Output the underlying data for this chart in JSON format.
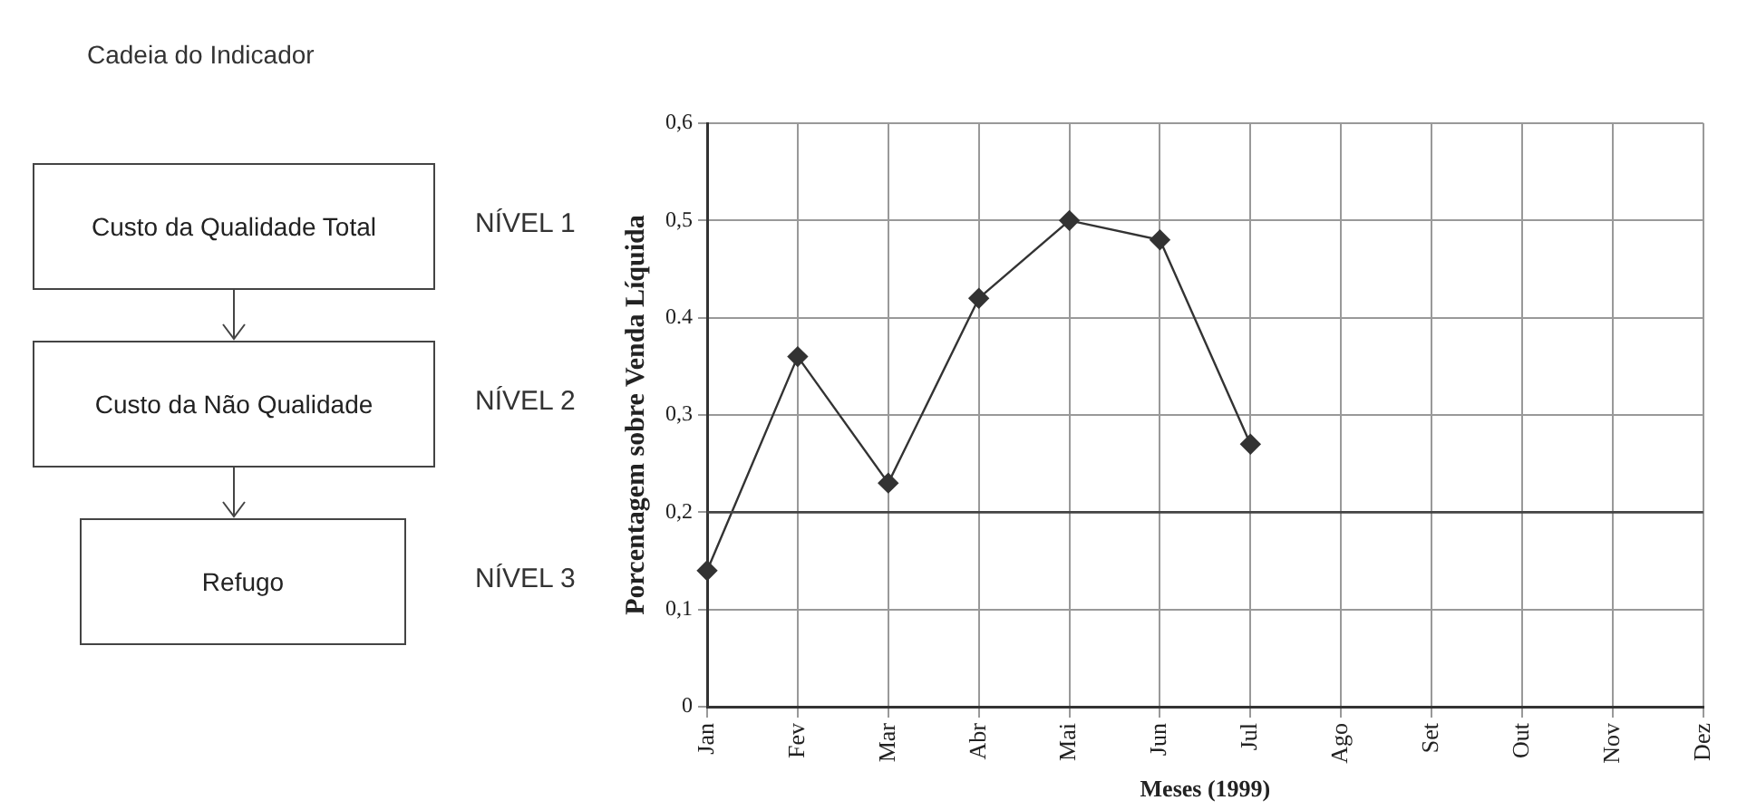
{
  "chart_data": [
    {
      "type": "other",
      "title": "Cadeia do Indicador",
      "annotations": [
        "Custo da Qualidade Total",
        "Custo da Não Qualidade",
        "Refugo",
        "NÍVEL 1",
        "NÍVEL 2",
        "NÍVEL 3"
      ]
    },
    {
      "type": "line",
      "xlabel": "Meses (1999)",
      "ylabel": "Porcentagem sobre Venda Líquida",
      "categories": [
        "Jan",
        "Fev",
        "Mar",
        "Abr",
        "Mai",
        "Jun",
        "Jul",
        "Ago",
        "Set",
        "Out",
        "Nov",
        "Dez"
      ],
      "series": [
        {
          "color": "#333333",
          "values": [
            0.14,
            0.36,
            0.23,
            0.42,
            0.5,
            0.48,
            0.27,
            null,
            null,
            null,
            null,
            null
          ]
        }
      ],
      "ylim": [
        0,
        0.6
      ],
      "yticks": [
        0,
        {
          "value": 0.1,
          "label": "0,1"
        },
        {
          "value": 0.2,
          "label": "0,2"
        },
        {
          "value": 0.3,
          "label": "0,3"
        },
        0.4,
        {
          "value": 0.5,
          "label": "0,5"
        },
        {
          "value": 0.6,
          "label": "0,6"
        }
      ],
      "ref_lines": [
        {
          "axis": "y",
          "value": 0.2,
          "color": "#444444"
        }
      ],
      "grid": true,
      "marker": "diamond",
      "line_style": "solid",
      "legend": false
    }
  ]
}
